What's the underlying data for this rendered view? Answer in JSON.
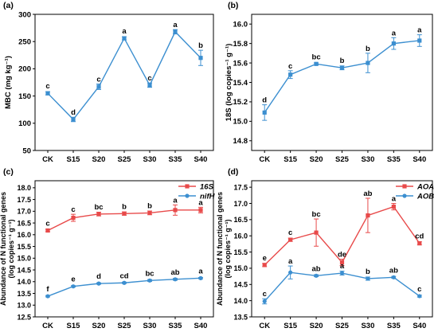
{
  "colors": {
    "blue": "#3C8FD0",
    "red": "#E84A4A",
    "axis": "#000000"
  },
  "chart_data": [
    {
      "panel_label": "(a)",
      "type": "line",
      "categories": [
        "CK",
        "S15",
        "S20",
        "S25",
        "S30",
        "S35",
        "S40"
      ],
      "ylabel": "MBC (mg kg⁻¹)",
      "ylim": [
        50,
        300
      ],
      "yticks": [
        "50",
        "100",
        "150",
        "200",
        "250",
        "300"
      ],
      "ytick_values": [
        50,
        100,
        150,
        200,
        250,
        300
      ],
      "legend": "none",
      "series": [
        {
          "color": "#3C8FD0",
          "marker": "square",
          "values": [
            155,
            107,
            167,
            256,
            170,
            268,
            220
          ],
          "errors": [
            3,
            4,
            5,
            3,
            4,
            4,
            14
          ],
          "letters": [
            "c",
            "d",
            "c",
            "a",
            "c",
            "a",
            "b"
          ]
        }
      ]
    },
    {
      "panel_label": "(b)",
      "type": "line",
      "categories": [
        "CK",
        "S15",
        "S20",
        "S25",
        "S30",
        "S35",
        "S40"
      ],
      "ylabel": "18S (log copies⁻¹ g⁻¹)",
      "ylim": [
        14.7,
        16.1
      ],
      "yticks": [
        "14.8",
        "15.0",
        "15.2",
        "15.4",
        "15.6",
        "15.8",
        "16.0"
      ],
      "ytick_values": [
        14.8,
        15.0,
        15.2,
        15.4,
        15.6,
        15.8,
        16.0
      ],
      "legend": "none",
      "series": [
        {
          "color": "#3C8FD0",
          "marker": "square",
          "values": [
            15.09,
            15.48,
            15.59,
            15.55,
            15.6,
            15.8,
            15.83
          ],
          "errors": [
            0.08,
            0.04,
            0.01,
            0.02,
            0.1,
            0.06,
            0.06
          ],
          "letters": [
            "d",
            "c",
            "bc",
            "b",
            "b",
            "a",
            "a"
          ]
        }
      ]
    },
    {
      "panel_label": "(c)",
      "type": "line",
      "categories": [
        "CK",
        "S15",
        "S20",
        "S25",
        "S30",
        "S35",
        "S40"
      ],
      "ylabel": "Abundance of N functional genes",
      "ylabel2": "(log copies⁻¹ g⁻¹)",
      "ylim": [
        12.5,
        18.3
      ],
      "yticks": [
        "12.5",
        "13.0",
        "13.5",
        "14.0",
        "14.5",
        "15.0",
        "15.5",
        "16.0",
        "16.5",
        "17.0",
        "17.5",
        "18.0"
      ],
      "ytick_values": [
        12.5,
        13.0,
        13.5,
        14.0,
        14.5,
        15.0,
        15.5,
        16.0,
        16.5,
        17.0,
        17.5,
        18.0
      ],
      "legend": "top-right",
      "series": [
        {
          "name": "16S",
          "color": "#E84A4A",
          "marker": "square",
          "values": [
            16.18,
            16.72,
            16.88,
            16.9,
            16.93,
            17.05,
            17.05
          ],
          "errors": [
            0.05,
            0.15,
            0.08,
            0.07,
            0.08,
            0.22,
            0.12
          ],
          "letters": [
            "c",
            "c",
            "bc",
            "b",
            "b",
            "a",
            "a"
          ]
        },
        {
          "name": "nifH",
          "color": "#3C8FD0",
          "marker": "circle",
          "values": [
            13.38,
            13.8,
            13.92,
            13.95,
            14.05,
            14.1,
            14.15
          ],
          "errors": [
            0.03,
            0.03,
            0.03,
            0.03,
            0.04,
            0.04,
            0.03
          ],
          "letters": [
            "f",
            "e",
            "d",
            "cd",
            "bc",
            "ab",
            "a"
          ]
        }
      ]
    },
    {
      "panel_label": "(d)",
      "type": "line",
      "categories": [
        "CK",
        "S15",
        "S20",
        "S25",
        "S30",
        "S35",
        "S40"
      ],
      "ylabel": "Abundance of N functional genes",
      "ylabel2": "(log copies⁻¹ g⁻¹)",
      "ylim": [
        13.5,
        17.7
      ],
      "yticks": [
        "13.5",
        "14.0",
        "14.5",
        "15.0",
        "15.5",
        "16.0",
        "16.5",
        "17.0",
        "17.5"
      ],
      "ytick_values": [
        13.5,
        14.0,
        14.5,
        15.0,
        15.5,
        16.0,
        16.5,
        17.0,
        17.5
      ],
      "legend": "top-right",
      "series": [
        {
          "name": "AOA",
          "color": "#E84A4A",
          "marker": "square",
          "values": [
            15.1,
            15.88,
            16.1,
            15.18,
            16.63,
            16.9,
            15.77
          ],
          "errors": [
            0.05,
            0.05,
            0.42,
            0.1,
            0.53,
            0.1,
            0.05
          ],
          "letters": [
            "e",
            "c",
            "bc",
            "de",
            "ab",
            "a",
            "cd"
          ]
        },
        {
          "name": "AOB",
          "color": "#3C8FD0",
          "marker": "circle",
          "values": [
            13.98,
            14.87,
            14.77,
            14.85,
            14.68,
            14.72,
            14.14
          ],
          "errors": [
            0.08,
            0.2,
            0.03,
            0.06,
            0.05,
            0.03,
            0.03
          ],
          "letters": [
            "c",
            "a",
            "ab",
            "a",
            "b",
            "ab",
            "c"
          ]
        }
      ]
    }
  ]
}
